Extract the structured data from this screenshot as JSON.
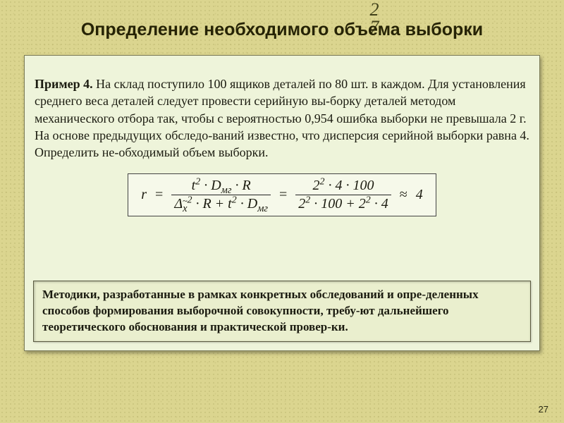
{
  "corner_number_top": "2",
  "corner_number_bottom": "7",
  "title": {
    "text": "Определение необходимого объема выборки",
    "fontsize": 25
  },
  "problem": {
    "label": "Пример 4.",
    "text": " На склад поступило 100 ящиков деталей по 80 шт. в каждом. Для установления среднего веса деталей следует провести серийную вы-борку деталей методом механического отбора так, чтобы с вероятностью 0,954 ошибка выборки не превышала 2 г. На основе предыдущих обследо-ваний известно, что дисперсия серийной выборки равна 4. Определить не-обходимый объем выборки.",
    "fontsize": 18
  },
  "formula": {
    "lhs_var": "r",
    "frac1": {
      "num": "t<sup>2</sup> · D<sub>мг</sub> · R",
      "den": "Δ<sub><span class=\"x-tilde\">x</span></sub><sup>2</sup> · R + t<sup>2</sup> · D<sub>мг</sub>"
    },
    "frac2": {
      "num": "2<sup>2</sup> · 4 · 100",
      "den": "2<sup>2</sup> · 100 + 2<sup>2</sup> · 4"
    },
    "approx_result": "4",
    "fontsize": 20
  },
  "note": {
    "text": "Методики, разработанные в рамках конкретных обследований и опре-деленных способов формирования выборочной совокупности, требу-ют дальнейшего теоретического обоснования и практической провер-ки.",
    "fontsize": 17
  },
  "page_number": "27",
  "colors": {
    "slide_bg": "#dbd58f",
    "panel_bg": "#eef4da",
    "note_bg": "#eaefce",
    "text": "#1b1b10",
    "border": "#7a7a55"
  }
}
